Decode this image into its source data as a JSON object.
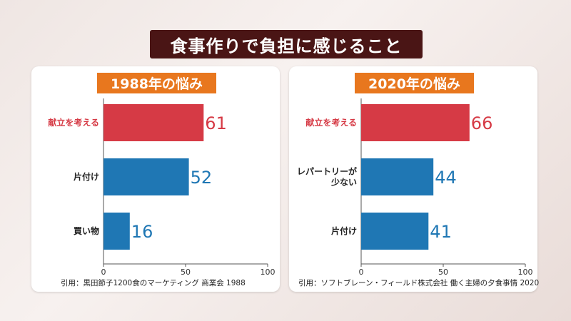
{
  "title": "食事作りで負担に感じること",
  "colors": {
    "highlight": "#d63a45",
    "normal": "#1f77b4",
    "header": "#e8771e",
    "title_bg": "#4a1515"
  },
  "chart_data": [
    {
      "type": "bar",
      "orientation": "horizontal",
      "title": "1988年の悩み",
      "categories": [
        "献立を考える",
        "片付け",
        "買い物"
      ],
      "values": [
        61,
        52,
        16
      ],
      "highlight": [
        true,
        false,
        false
      ],
      "xlim": [
        0,
        100
      ],
      "xticks": [
        0,
        50,
        100
      ],
      "citation": "引用：黒田節子1200食のマーケティング 商業会 1988"
    },
    {
      "type": "bar",
      "orientation": "horizontal",
      "title": "2020年の悩み",
      "categories": [
        "献立を考える",
        "レパートリーが\n少ない",
        "片付け"
      ],
      "values": [
        66,
        44,
        41
      ],
      "highlight": [
        true,
        false,
        false
      ],
      "xlim": [
        0,
        100
      ],
      "xticks": [
        0,
        50,
        100
      ],
      "citation": "引用：ソフトブレーン・フィールド株式会社 働く主婦の夕食事情 2020"
    }
  ]
}
